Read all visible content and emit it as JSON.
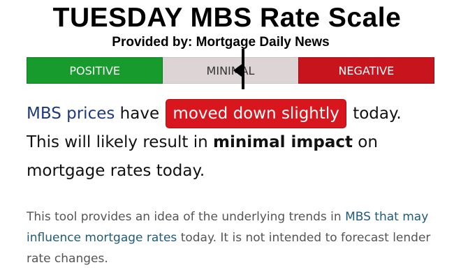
{
  "header": {
    "title": "TUESDAY MBS Rate Scale",
    "subtitle": "Provided by: Mortgage Daily News"
  },
  "scale": {
    "positive_label": "POSITIVE",
    "minimal_label": "MINIMAL",
    "negative_label": "NEGATIVE",
    "positive_color": "#179b2c",
    "minimal_color": "#ddd5d5",
    "negative_color": "#c8141c",
    "indicator_position": 0.53
  },
  "summary": {
    "prefix_link": "MBS prices",
    "text1": " have ",
    "badge": "moved down slightly",
    "text2": " today. This will likely result in ",
    "bold": "minimal impact",
    "text3": " on mortgage rates today."
  },
  "note": {
    "text1": "This tool provides an idea of the underlying trends in ",
    "link": "MBS that may influence mortgage rates",
    "text2": " today. It is not intended to forecast lender rate changes."
  }
}
